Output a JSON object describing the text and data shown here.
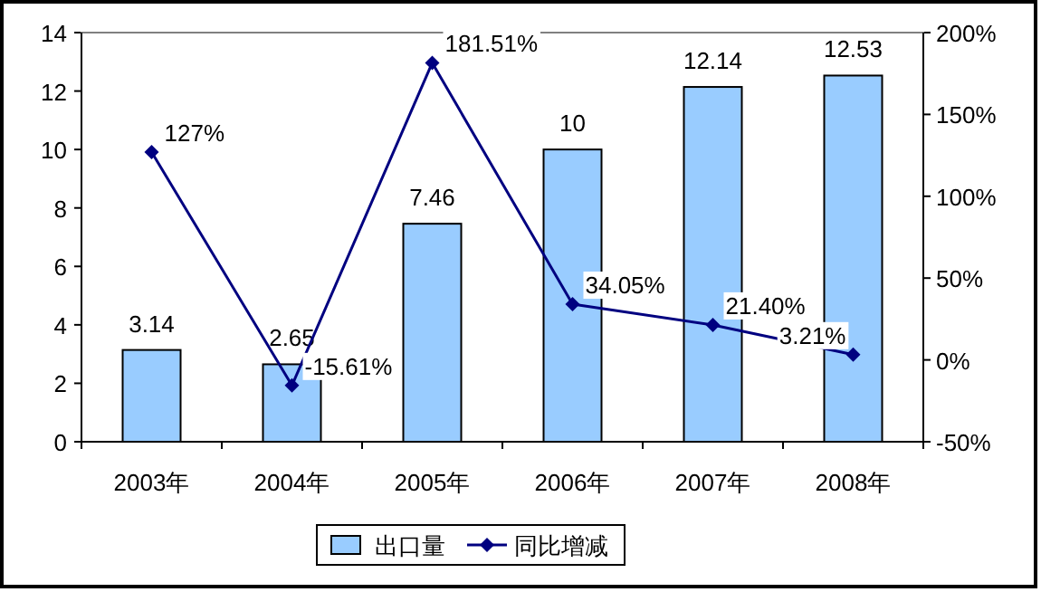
{
  "chart_data": {
    "type": "bar",
    "categories": [
      "2003年",
      "2004年",
      "2005年",
      "2006年",
      "2007年",
      "2008年"
    ],
    "series": [
      {
        "name": "出口量",
        "color": "#99ccff",
        "values": [
          3.14,
          2.65,
          7.46,
          10,
          12.14,
          12.53
        ],
        "value_labels": [
          "3.14",
          "2.65",
          "7.46",
          "10",
          "12.14",
          "12.53"
        ]
      },
      {
        "name": "同比增减",
        "type": "line",
        "axis": "y2",
        "color": "#000080",
        "values": [
          127,
          -15.61,
          181.51,
          34.05,
          21.4,
          3.21
        ],
        "value_labels": [
          "127%",
          "-15.61%",
          "181.51%",
          "34.05%",
          "21.40%",
          "3.21%"
        ]
      }
    ],
    "ylim": [
      0,
      14
    ],
    "yticks": [
      0,
      2,
      4,
      6,
      8,
      10,
      12,
      14
    ],
    "y2lim": [
      -50,
      200
    ],
    "y2ticks": [
      {
        "value": -50,
        "label": "-50%"
      },
      {
        "value": 0,
        "label": "0%"
      },
      {
        "value": 50,
        "label": "50%"
      },
      {
        "value": 100,
        "label": "100%"
      },
      {
        "value": 150,
        "label": "150%"
      },
      {
        "value": 200,
        "label": "200%"
      }
    ],
    "marker": "diamond",
    "legend": "bottom",
    "grid": false
  }
}
